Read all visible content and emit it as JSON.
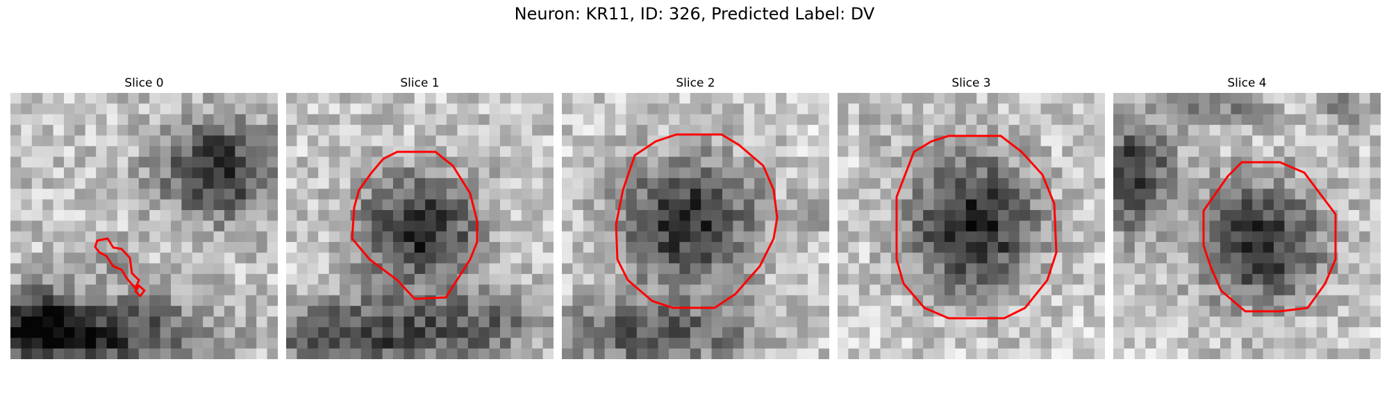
{
  "figure": {
    "title": "Neuron: KR11, ID: 326, Predicted Label: DV"
  },
  "contour_color": "#ff0000",
  "slices": [
    {
      "label": "Slice 0"
    },
    {
      "label": "Slice 1"
    },
    {
      "label": "Slice 2"
    },
    {
      "label": "Slice 3"
    },
    {
      "label": "Slice 4"
    }
  ]
}
